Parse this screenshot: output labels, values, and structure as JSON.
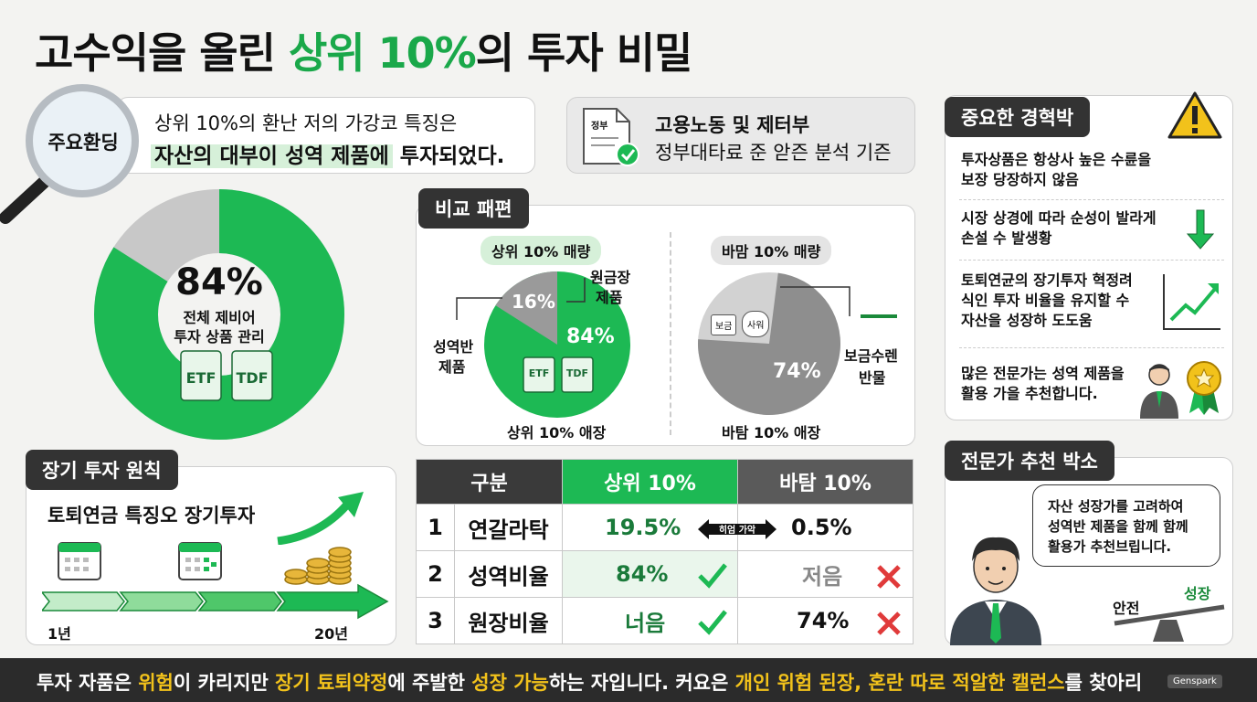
{
  "title": {
    "prefix": "고수익을 올린 ",
    "highlight": "상위 10%",
    "suffix": "의 투자 비밀"
  },
  "finding": {
    "badge": "주요환딩",
    "line1": "상위 10%의 환난 저의 가강코 특징은",
    "line2_hl": "자산의 대부이 성역 제품에",
    "line2_rest": " 투자되었다."
  },
  "source": {
    "doc_label": "정부",
    "line1": "고용노동 및 제터부",
    "line2": "정부대타료 준 앋즌 분석 기즌"
  },
  "main_donut": {
    "percent_text": "84%",
    "label1": "전체 제비어",
    "label2": "투자 상품 관리",
    "chips": [
      "ETF",
      "TDF"
    ],
    "value": 84,
    "colors": {
      "main": "#1db954",
      "rest": "#c8c8c8"
    }
  },
  "comparison": {
    "tag": "비교 패편",
    "left": {
      "header": "상위 10% 매량",
      "inner_pct": "16%",
      "main_pct": "84%",
      "label_right": [
        "원금장",
        "제품"
      ],
      "label_left": [
        "성역반",
        "제품"
      ],
      "chips": [
        "ETF",
        "TDF"
      ],
      "caption": "상위 10% 애장",
      "value": 84
    },
    "right": {
      "header": "바맘 10% 매량",
      "main_pct": "74%",
      "label_right": [
        "보금수렌",
        "반물"
      ],
      "icons": [
        "보금",
        "사워"
      ],
      "caption": "바탐 10% 애장",
      "value": 74
    }
  },
  "warning": {
    "tag": "중요한 경혁박",
    "items": [
      [
        "투자상품은 항상사 높은 수륜을",
        "보장 당장하지 않음"
      ],
      [
        "시장 상경에 따라 순성이 발라게",
        "손설 수 발생황"
      ],
      [
        "토퇴연균의 장기투자 혁정려",
        "식인 투자 비율을 유지할 수",
        "자산을 성장하 도도움"
      ],
      [
        "많은 전문가는 성역 제품을",
        "활용 가을 추천합니다."
      ]
    ]
  },
  "principle": {
    "tag": "장기 투자 원칙",
    "headline": "토퇴연금 특징오 장기투자",
    "start_label": "1년",
    "end_label": "20년"
  },
  "table": {
    "headers": [
      "구분",
      "상위 10%",
      "바탐 10%"
    ],
    "rows": [
      {
        "num": "1",
        "label": "연갈라탁",
        "top": "19.5%",
        "bottom": "0.5%",
        "badge": "히엄 가악"
      },
      {
        "num": "2",
        "label": "성역비율",
        "top": "84%",
        "bottom": "저음"
      },
      {
        "num": "3",
        "label": "원장비율",
        "top": "너음",
        "bottom": "74%"
      }
    ],
    "colors": {
      "header_dark": "#3a3a3a",
      "header_green": "#1db954",
      "header_gray": "#5a5a5a",
      "green_text": "#1a7a3a",
      "gray_text": "#888888",
      "x_red": "#e03a3a"
    }
  },
  "expert": {
    "tag": "전문가 추천 박소",
    "bubble": [
      "자산 성장가를 고려하여",
      "성역반 제품을 함께 함께",
      "활용가 추천브립니다."
    ],
    "scale_left": "안전",
    "scale_right": "성장"
  },
  "footer": {
    "parts": [
      {
        "t": "투자 자품은 ",
        "y": false
      },
      {
        "t": "위험",
        "y": true
      },
      {
        "t": "이 카리지만 ",
        "y": false
      },
      {
        "t": "장기 툐퇴약정",
        "y": true
      },
      {
        "t": "에 주발한 ",
        "y": false
      },
      {
        "t": "성장 가능",
        "y": true
      },
      {
        "t": "하는 자입니다. 커요은 ",
        "y": false
      },
      {
        "t": "개인 위험 된장, 혼란 따로 적알한 캘런스",
        "y": true
      },
      {
        "t": "를 찾아리",
        "y": false
      }
    ],
    "watermark": "Genspark"
  }
}
